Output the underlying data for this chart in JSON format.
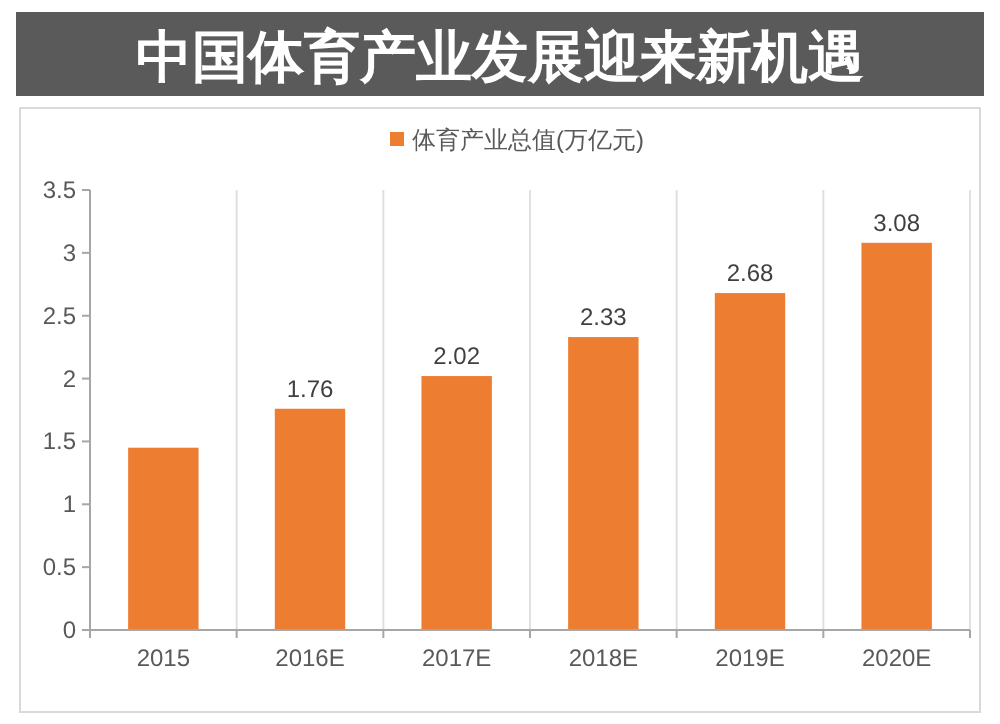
{
  "chart_data": {
    "type": "bar",
    "title": "中国体育产业发展迎来新机遇",
    "categories": [
      "2015",
      "2016E",
      "2017E",
      "2018E",
      "2019E",
      "2020E"
    ],
    "series": [
      {
        "name": "体育产业总值(万亿元)",
        "color": "#ed7d31",
        "values": [
          1.45,
          1.76,
          2.02,
          2.33,
          2.68,
          3.08
        ],
        "value_labels": [
          null,
          "1.76",
          "2.02",
          "2.33",
          "2.68",
          "3.08"
        ]
      }
    ],
    "ylim": [
      0,
      3.5
    ],
    "yticks": [
      0,
      0.5,
      1,
      1.5,
      2,
      2.5,
      3,
      3.5
    ],
    "grid": "x",
    "legend": "top"
  }
}
